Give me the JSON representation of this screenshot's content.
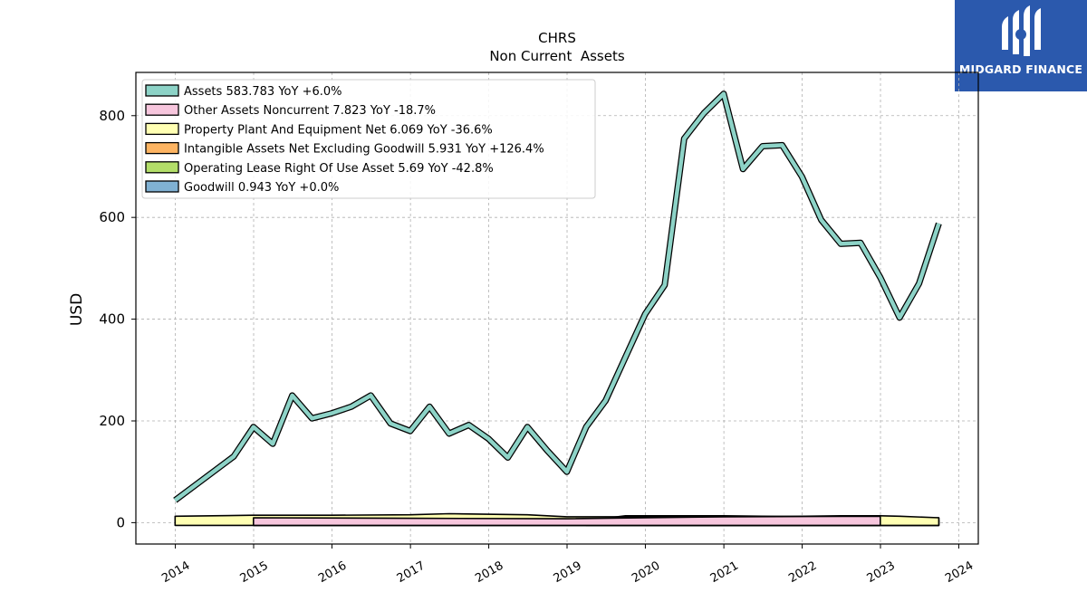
{
  "logo": {
    "text": "MIDGARD FINANCE",
    "color": "#2b59ad"
  },
  "chart_data": {
    "type": "area",
    "title": "CHRS",
    "subtitle": "Non Current  Assets",
    "ylabel": "USD",
    "xlabel": "",
    "xlim": [
      "2013-07-01",
      "2024-04-01"
    ],
    "ylim": [
      -42,
      885
    ],
    "yticks": [
      0,
      200,
      400,
      600,
      800
    ],
    "xticks": [
      "2014",
      "2015",
      "2016",
      "2017",
      "2018",
      "2019",
      "2020",
      "2021",
      "2022",
      "2023",
      "2024"
    ],
    "grid": true,
    "legend_position": "top-left",
    "series": [
      {
        "name": "Assets  583.783 YoY +6.0%",
        "color": "#8dd3c7",
        "x": [
          "2013-12-31",
          "2014-09-30",
          "2014-12-31",
          "2015-03-31",
          "2015-06-30",
          "2015-09-30",
          "2015-12-31",
          "2016-03-31",
          "2016-06-30",
          "2016-09-30",
          "2016-12-31",
          "2017-03-31",
          "2017-06-30",
          "2017-09-30",
          "2017-12-31",
          "2018-03-31",
          "2018-06-30",
          "2018-09-30",
          "2018-12-31",
          "2019-03-31",
          "2019-06-30",
          "2019-09-30",
          "2019-12-31",
          "2020-03-31",
          "2020-06-30",
          "2020-09-30",
          "2020-12-31",
          "2021-03-31",
          "2021-06-30",
          "2021-09-30",
          "2021-12-31",
          "2022-03-31",
          "2022-06-30",
          "2022-09-30",
          "2022-12-31",
          "2023-03-31",
          "2023-06-30",
          "2023-09-30"
        ],
        "y": [
          44,
          130,
          188,
          155,
          250,
          205,
          215,
          228,
          250,
          195,
          180,
          228,
          175,
          192,
          165,
          128,
          188,
          142,
          100,
          188,
          240,
          325,
          410,
          467,
          755,
          805,
          843,
          695,
          740,
          742,
          680,
          595,
          548,
          550,
          482,
          403,
          470,
          588
        ]
      },
      {
        "name": "Other Assets Noncurrent  7.823 YoY -18.7%",
        "color": "#f7c6dd",
        "x": [
          "2014-12-31",
          "2016-12-31",
          "2018-12-31",
          "2020-12-31",
          "2022-12-31"
        ],
        "y": [
          6,
          5,
          4,
          8,
          9
        ]
      },
      {
        "name": "Property Plant And Equipment Net  6.069 YoY -36.6%",
        "color": "#ffffb3",
        "x": [
          "2013-12-31",
          "2014-12-31",
          "2015-12-31",
          "2016-12-31",
          "2017-06-30",
          "2018-06-30",
          "2018-12-31",
          "2019-06-30",
          "2020-06-30",
          "2021-06-30",
          "2022-06-30",
          "2022-12-31",
          "2023-03-31",
          "2023-09-30"
        ],
        "y": [
          9,
          11,
          11,
          12,
          14,
          12,
          8,
          8,
          8,
          8,
          10,
          10,
          9,
          6
        ]
      },
      {
        "name": "Intangible Assets Net Excluding Goodwill  5.931 YoY +126.4%",
        "color": "#fdb462",
        "x": [
          "2019-12-31",
          "2020-12-31",
          "2021-12-31",
          "2022-12-31",
          "2023-09-30"
        ],
        "y": [
          1,
          2,
          2,
          3,
          6
        ]
      },
      {
        "name": "Operating Lease Right Of Use Asset  5.69 YoY -42.8%",
        "color": "#b3de69",
        "x": [
          "2019-03-31",
          "2019-06-30",
          "2019-09-30",
          "2020-03-31",
          "2020-12-31",
          "2021-06-30",
          "2022-06-30",
          "2022-12-31"
        ],
        "y": [
          5,
          5,
          10,
          10,
          10,
          9,
          8,
          8
        ]
      },
      {
        "name": "Goodwill  0.943 YoY +0.0%",
        "color": "#80b1d3",
        "x": [
          "2014-12-31",
          "2023-09-30"
        ],
        "y": [
          0.943,
          0.943
        ]
      }
    ]
  }
}
